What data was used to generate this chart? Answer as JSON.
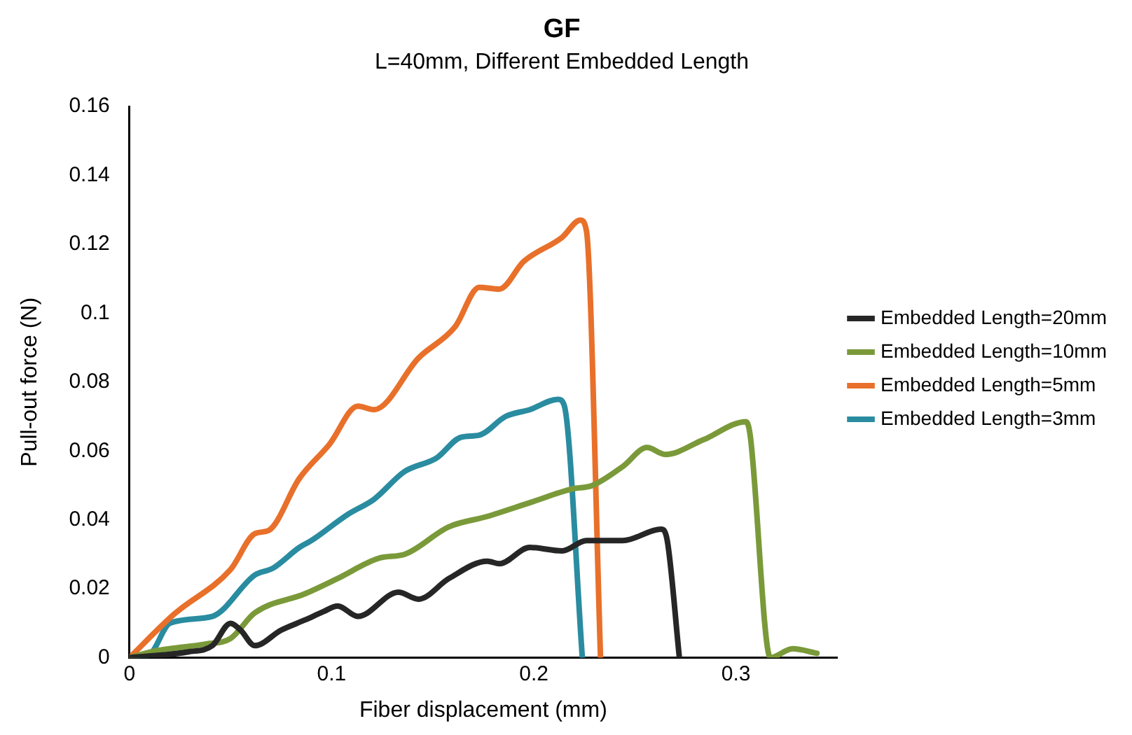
{
  "chart_data": {
    "type": "line",
    "title": "GF",
    "subtitle": "L=40mm, Different Embedded Length",
    "xlabel": "Fiber displacement (mm)",
    "ylabel": "Pull-out force (N)",
    "xlim": [
      0,
      0.35
    ],
    "xticks": [
      0,
      0.1,
      0.2,
      0.3
    ],
    "ylim": [
      0,
      0.16
    ],
    "yticks": [
      0,
      0.02,
      0.04,
      0.06,
      0.08,
      0.1,
      0.12,
      0.14,
      0.16
    ],
    "grid": false,
    "legend": "right",
    "marker": "none",
    "line_style": "solid",
    "series": [
      {
        "name": "Embedded Length=20mm",
        "color": "#262626",
        "x": [
          0,
          0.029,
          0.041,
          0.05,
          0.055,
          0.062,
          0.075,
          0.087,
          0.096,
          0.103,
          0.113,
          0.133,
          0.143,
          0.158,
          0.177,
          0.183,
          0.198,
          0.214,
          0.226,
          0.244,
          0.263,
          0.266,
          0.272
        ],
        "values": [
          0,
          0.0017,
          0.0035,
          0.01,
          0.008,
          0.0035,
          0.008,
          0.011,
          0.0134,
          0.015,
          0.012,
          0.019,
          0.017,
          0.023,
          0.028,
          0.0273,
          0.032,
          0.031,
          0.034,
          0.034,
          0.0373,
          0.034,
          0
        ]
      },
      {
        "name": "Embedded Length=10mm",
        "color": "#7a9a3a",
        "x": [
          0,
          0.013,
          0.038,
          0.05,
          0.062,
          0.087,
          0.103,
          0.124,
          0.136,
          0.158,
          0.177,
          0.198,
          0.219,
          0.229,
          0.244,
          0.256,
          0.265,
          0.284,
          0.305,
          0.307,
          0.317,
          0.328,
          0.34
        ],
        "values": [
          0,
          0.002,
          0.004,
          0.0056,
          0.013,
          0.0186,
          0.023,
          0.029,
          0.03,
          0.038,
          0.041,
          0.045,
          0.049,
          0.05,
          0.0555,
          0.061,
          0.059,
          0.0633,
          0.0685,
          0.0646,
          0,
          0.0026,
          0.0013
        ]
      },
      {
        "name": "Embedded Length=5mm",
        "color": "#e8702a",
        "x": [
          0,
          0.022,
          0.05,
          0.062,
          0.069,
          0.084,
          0.099,
          0.113,
          0.121,
          0.143,
          0.161,
          0.173,
          0.183,
          0.195,
          0.214,
          0.223,
          0.226,
          0.233
        ],
        "values": [
          0,
          0.0126,
          0.0256,
          0.036,
          0.037,
          0.052,
          0.062,
          0.073,
          0.072,
          0.087,
          0.096,
          0.1075,
          0.107,
          0.115,
          0.122,
          0.127,
          0.124,
          0
        ]
      },
      {
        "name": "Embedded Length=3mm",
        "color": "#2a8ca0",
        "x": [
          0,
          0.01,
          0.02,
          0.041,
          0.062,
          0.071,
          0.084,
          0.09,
          0.108,
          0.121,
          0.136,
          0.152,
          0.164,
          0.173,
          0.186,
          0.198,
          0.212,
          0.215,
          0.224
        ],
        "values": [
          0,
          0.001,
          0.01,
          0.012,
          0.024,
          0.026,
          0.032,
          0.034,
          0.0416,
          0.046,
          0.054,
          0.058,
          0.064,
          0.0646,
          0.07,
          0.072,
          0.075,
          0.0733,
          0
        ]
      }
    ]
  }
}
